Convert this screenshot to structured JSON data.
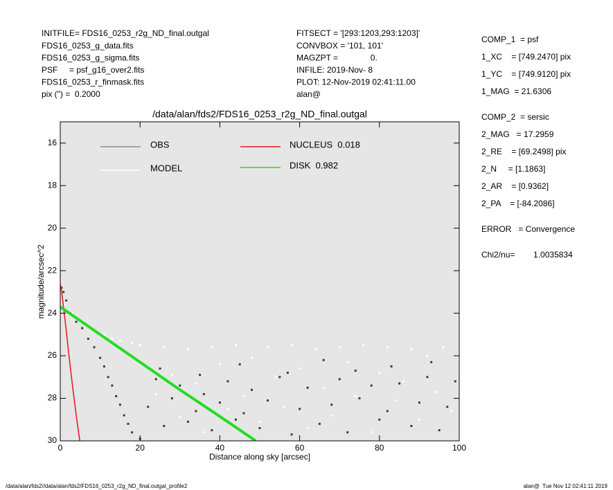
{
  "header": {
    "left": [
      "INITFILE= FDS16_0253_r2g_ND_final.outgal",
      "FDS16_0253_g_data.fits",
      "FDS16_0253_g_sigma.fits",
      "PSF     = psf_g16_over2.fits",
      "FDS16_0253_r_finmask.fits",
      "pix (\") =  0.2000"
    ],
    "middle": [
      "FITSECT = '[293:1203,293:1203]'",
      "CONVBOX = '101, 101'",
      "MAGZPT =              0.",
      "INFILE: 2019-Nov- 8",
      "PLOT: 12-Nov-2019 02:41:11.00",
      "alan@"
    ]
  },
  "info": [
    [
      "COMP_1  = psf",
      "1_XC    = [749.2470] pix",
      "1_YC    = [749.9120] pix",
      "1_MAG  = 21.6306"
    ],
    [
      "COMP_2  = sersic",
      "2_MAG   = 17.2959",
      "2_RE    = [69.2498] pix",
      "2_N     = [1.1863]",
      "2_AR    = [0.9362]",
      "2_PA    = [-84.2086]"
    ],
    [
      "ERROR   = Convergence"
    ],
    [
      "Chi2/nu=        1.0035834"
    ]
  ],
  "footer": {
    "left": "/data/alan/fds2//data/alan/fds2/FDS16_0253_r2g_ND_final.outgal_profile2",
    "right": "alan@  Tue Nov 12 02:41:11 2019"
  },
  "chart_data": {
    "type": "scatter",
    "title": "/data/alan/fds2/FDS16_0253_r2g_ND_final.outgal",
    "x_label": "Distance along sky [arcsec]",
    "y_label": "magnitude/arcsec^2",
    "xlim": [
      0,
      100
    ],
    "xticks": [
      0,
      20,
      40,
      60,
      80,
      100
    ],
    "ylim": [
      30,
      15
    ],
    "yticks": [
      16,
      18,
      20,
      22,
      24,
      26,
      28,
      30
    ],
    "background": "#e6e6e6",
    "series": [
      {
        "name": "OBS",
        "color": "#8c8c8c",
        "marker_color": "#3c3c3c",
        "mode": "points",
        "x": [
          0.3,
          0.8,
          1.5,
          2.5,
          4,
          5.5,
          7,
          8.5,
          10,
          11,
          12,
          13,
          14,
          15,
          16,
          17,
          18,
          20,
          22,
          24,
          26,
          28,
          30,
          32,
          34,
          36,
          38,
          40,
          42,
          44,
          46,
          48,
          50,
          52,
          55,
          58,
          60,
          62,
          65,
          68,
          70,
          72,
          75,
          78,
          80,
          82,
          85,
          88,
          90,
          92,
          95,
          97,
          99,
          25,
          35,
          45,
          57,
          66,
          74,
          83,
          93
        ],
        "values": [
          22.8,
          23.0,
          23.4,
          24.0,
          24.4,
          24.7,
          25.2,
          25.6,
          26.1,
          26.5,
          27.0,
          27.4,
          27.9,
          28.3,
          28.8,
          29.2,
          29.6,
          29.9,
          28.4,
          27.1,
          29.3,
          28.0,
          27.4,
          29.1,
          28.6,
          27.8,
          29.5,
          28.2,
          27.2,
          29.0,
          28.7,
          27.6,
          29.4,
          28.1,
          27.0,
          29.7,
          28.5,
          27.5,
          29.2,
          28.3,
          27.1,
          29.6,
          28.0,
          27.4,
          29.0,
          28.6,
          27.3,
          29.3,
          28.2,
          27.0,
          29.5,
          28.4,
          27.2,
          26.6,
          26.9,
          26.4,
          26.8,
          26.2,
          26.7,
          26.5,
          26.3
        ]
      },
      {
        "name": "MODEL",
        "color": "#ffffff",
        "marker_color": "#ffffff",
        "mode": "points",
        "x": [
          1,
          3,
          5,
          7,
          9,
          11,
          13,
          15,
          18,
          20,
          22,
          24,
          26,
          28,
          30,
          32,
          34,
          36,
          38,
          40,
          42,
          44,
          46,
          48,
          50,
          52,
          54,
          56,
          58,
          60,
          62,
          64,
          66,
          68,
          70,
          72,
          74,
          76,
          78,
          80,
          82,
          84,
          86,
          88,
          90,
          92,
          94,
          96,
          98,
          100
        ],
        "values": [
          23.6,
          24.0,
          24.4,
          24.6,
          24.9,
          25.0,
          25.2,
          25.3,
          25.4,
          25.5,
          26.5,
          27.8,
          25.6,
          26.9,
          28.9,
          25.7,
          27.3,
          29.6,
          25.6,
          26.4,
          28.5,
          25.5,
          27.9,
          26.1,
          29.1,
          25.6,
          27.0,
          28.4,
          25.5,
          26.6,
          29.4,
          25.7,
          27.5,
          28.8,
          25.6,
          26.3,
          27.9,
          25.5,
          29.6,
          26.8,
          25.6,
          28.1,
          27.2,
          25.7,
          29.0,
          26.0,
          27.7,
          25.6,
          28.6,
          26.2
        ]
      },
      {
        "name": "NUCLEUS  0.018",
        "color": "#e8141c",
        "mode": "line",
        "x": [
          0,
          0.5,
          1,
          1.5,
          2,
          3,
          4,
          4.9
        ],
        "values": [
          22.6,
          23.2,
          24.0,
          24.8,
          25.7,
          27.3,
          28.8,
          30
        ]
      },
      {
        "name": "DISK  0.982",
        "color": "#22dd22",
        "mode": "line",
        "x": [
          0,
          10,
          20,
          30,
          40,
          49
        ],
        "values": [
          23.7,
          25.0,
          26.3,
          27.6,
          28.85,
          30
        ]
      }
    ]
  }
}
